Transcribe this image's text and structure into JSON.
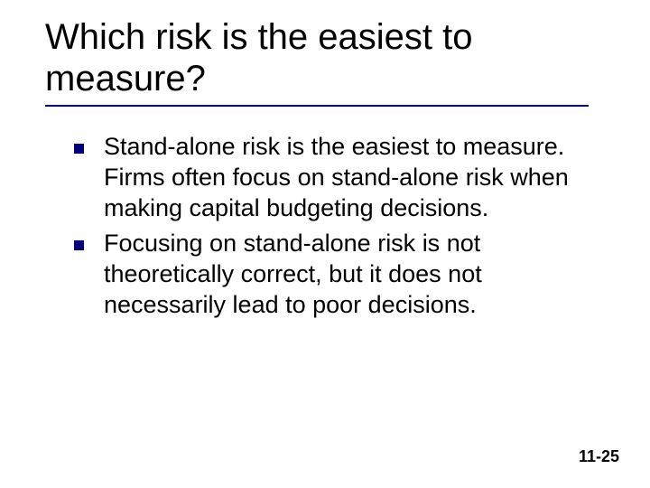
{
  "slide": {
    "title": "Which risk is the easiest to measure?",
    "title_fontsize": 40,
    "rule_color": "#000080",
    "bullets": [
      "Stand-alone risk is the easiest to measure.  Firms often focus on stand-alone risk when making capital budgeting decisions.",
      "Focusing on stand-alone risk is not theoretically correct, but it does not necessarily lead to poor decisions."
    ],
    "bullet_marker_color": "#000080",
    "body_fontsize": 27,
    "page_number": "11-25",
    "page_number_fontsize": 18,
    "background_color": "#ffffff",
    "text_color": "#000000"
  }
}
